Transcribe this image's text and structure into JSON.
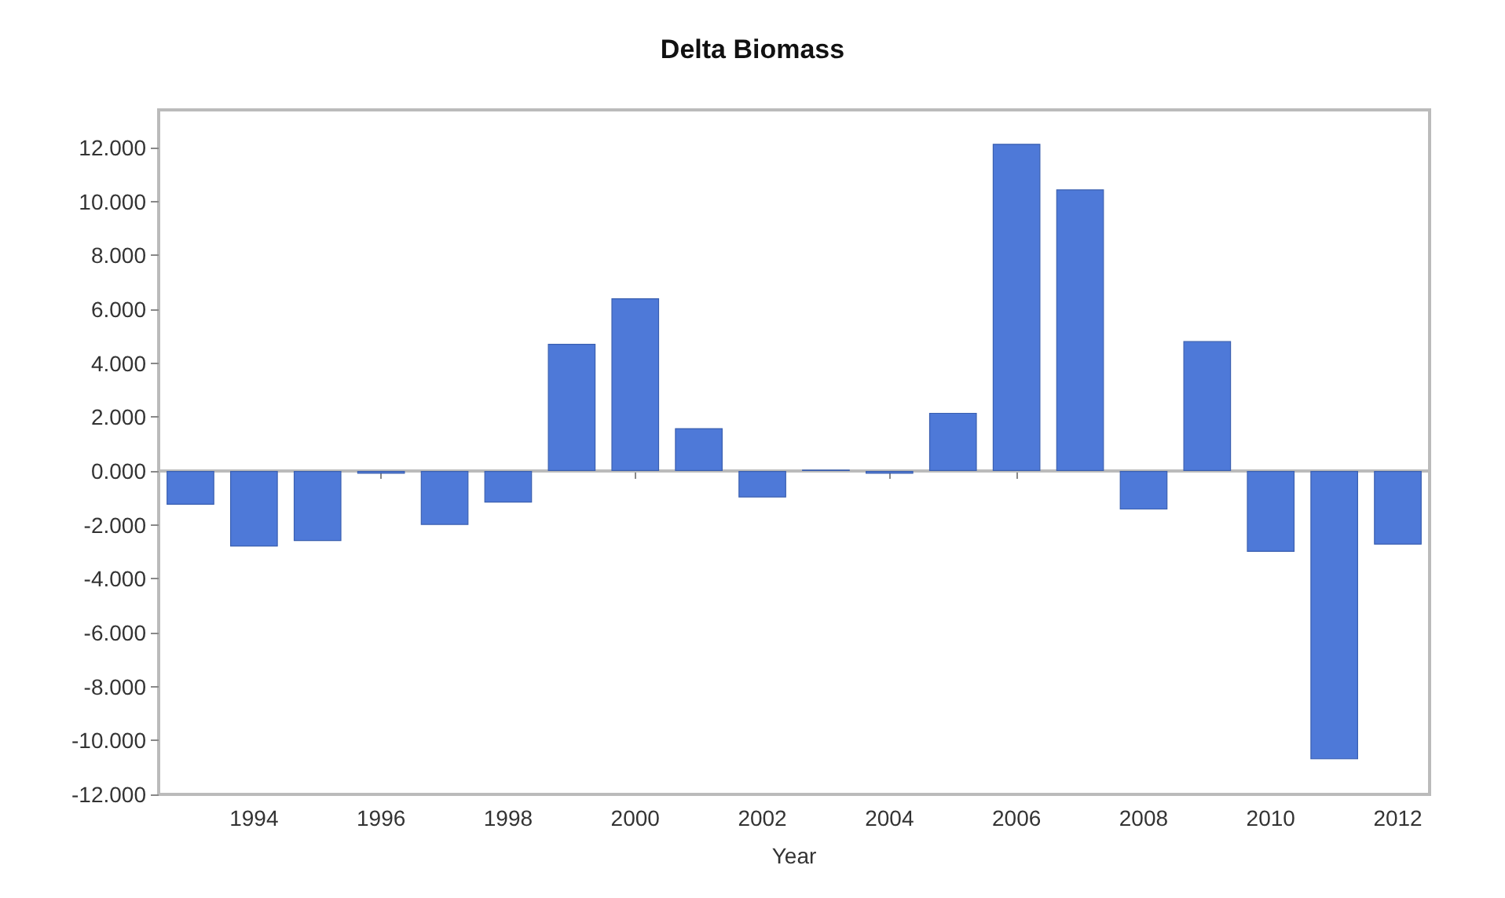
{
  "chart_data": {
    "type": "bar",
    "title": "Delta Biomass",
    "xlabel": "Year",
    "categories": [
      null,
      "1994",
      null,
      "1996",
      null,
      "1998",
      null,
      "2000",
      null,
      "2002",
      null,
      "2004",
      null,
      "2006",
      null,
      "2008",
      null,
      "2010",
      null,
      "2012"
    ],
    "values": [
      -1.25,
      -2.8,
      -2.6,
      -0.1,
      -2.0,
      -1.17,
      4.72,
      6.41,
      1.59,
      -0.98,
      0.05,
      -0.1,
      2.16,
      12.14,
      10.45,
      -1.43,
      4.82,
      -3.0,
      -10.7,
      -2.73
    ],
    "color": "#4e79d8",
    "ylim": [
      -12,
      13.4
    ],
    "yticks": [
      {
        "value": -12,
        "label": "-12.000"
      },
      {
        "value": -10,
        "label": "-10.000"
      },
      {
        "value": -8,
        "label": "-8.000"
      },
      {
        "value": -6,
        "label": "-6.000"
      },
      {
        "value": -4,
        "label": "-4.000"
      },
      {
        "value": -2,
        "label": "-2.000"
      },
      {
        "value": 0,
        "label": "0.000"
      },
      {
        "value": 2,
        "label": "2.000"
      },
      {
        "value": 4,
        "label": "4.000"
      },
      {
        "value": 6,
        "label": "6.000"
      },
      {
        "value": 8,
        "label": "8.000"
      },
      {
        "value": 10,
        "label": "10.000"
      },
      {
        "value": 12,
        "label": "12.000"
      }
    ],
    "ref_lines": [
      {
        "axis": "y",
        "value": 0,
        "color": "#bbbbbb"
      }
    ],
    "grid": false
  }
}
